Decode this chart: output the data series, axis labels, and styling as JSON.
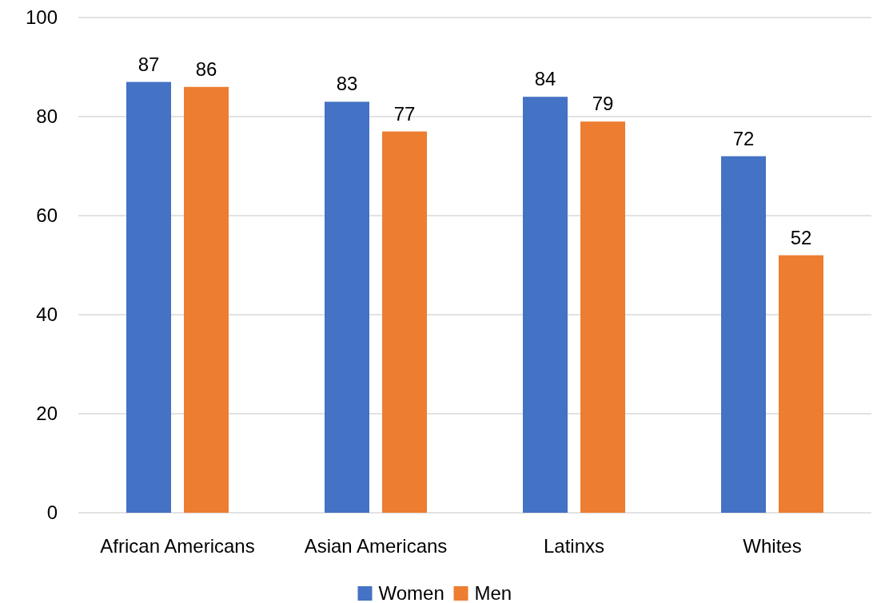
{
  "chart_data": {
    "type": "bar",
    "categories": [
      "African Americans",
      "Asian Americans",
      "Latinxs",
      "Whites"
    ],
    "series": [
      {
        "name": "Women",
        "color": "#4472c4",
        "values": [
          87,
          83,
          84,
          72
        ]
      },
      {
        "name": "Men",
        "color": "#ed7d31",
        "values": [
          86,
          77,
          79,
          52
        ]
      }
    ],
    "ylim": [
      0,
      100
    ],
    "yticks": [
      0,
      20,
      40,
      60,
      80,
      100
    ],
    "grid": "y",
    "legend": "bottom",
    "data_labels": true
  }
}
